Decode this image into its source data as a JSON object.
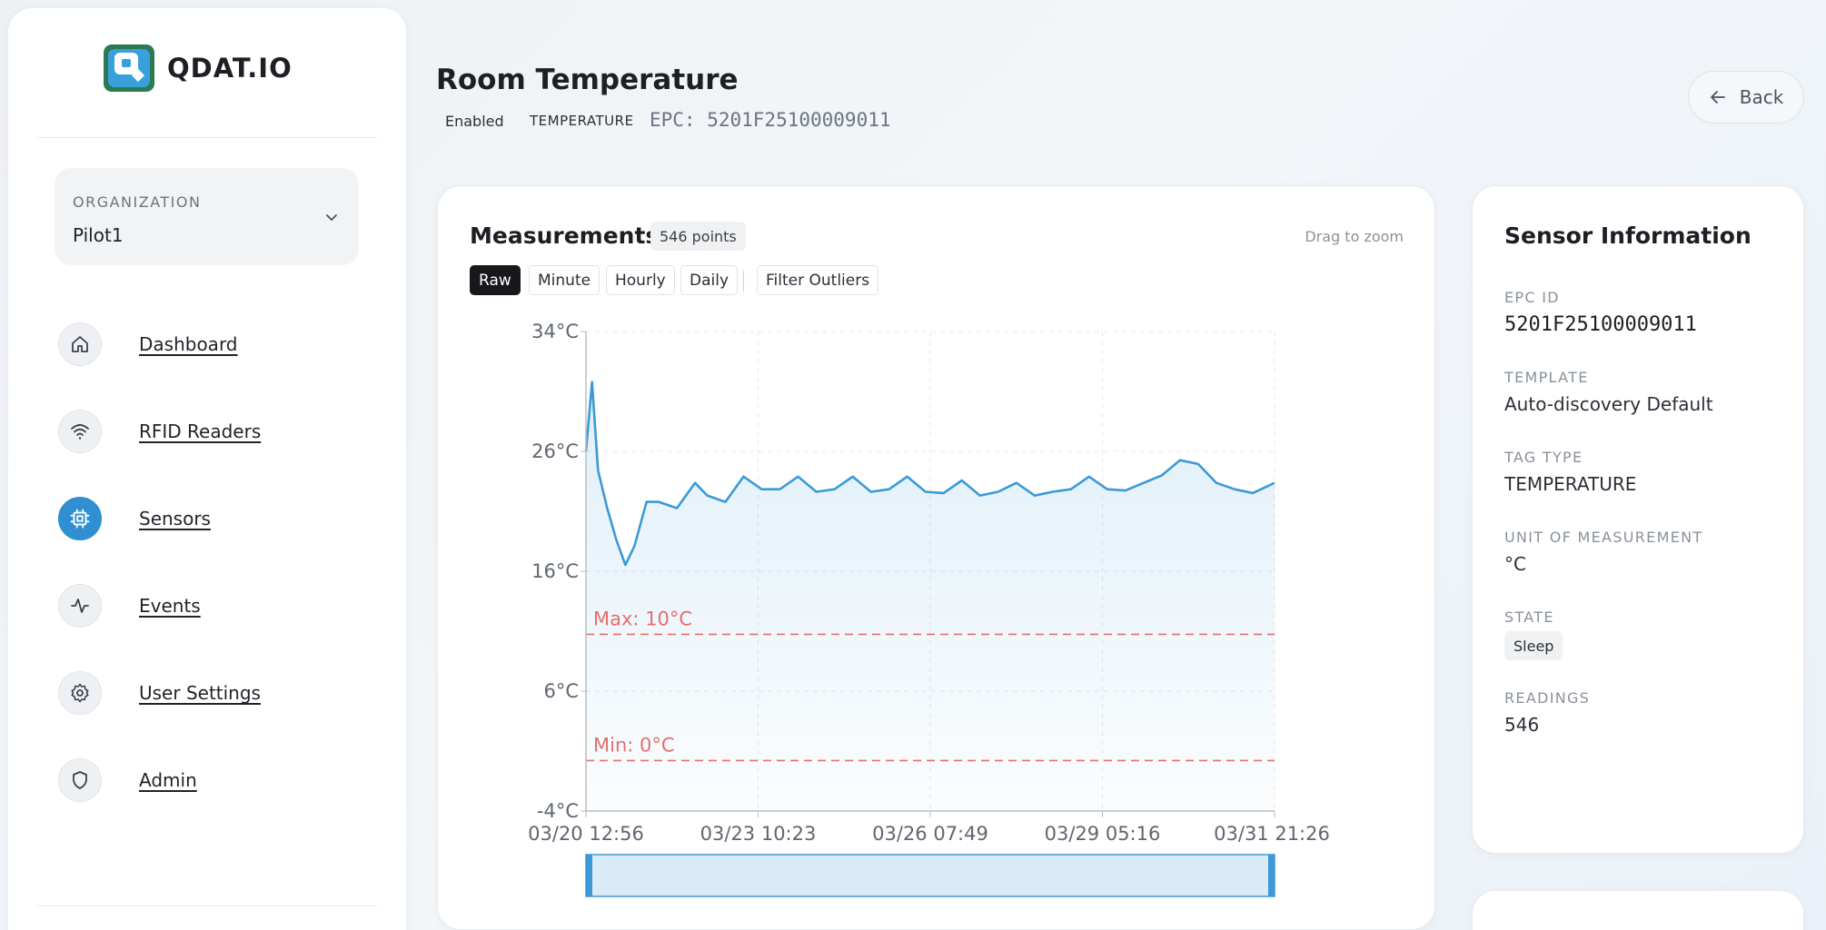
{
  "app": {
    "logo_text": "QDAT.IO",
    "brand_color": "#3aa0dc",
    "brand_dark": "#2b7a52"
  },
  "org": {
    "label": "ORGANIZATION",
    "value": "Pilot1",
    "icon": "chevron-down-icon"
  },
  "nav": [
    {
      "label": "Dashboard",
      "icon": "home-icon",
      "active": false
    },
    {
      "label": "RFID Readers",
      "icon": "wifi-icon",
      "active": false
    },
    {
      "label": "Sensors",
      "icon": "chip-icon",
      "active": true
    },
    {
      "label": "Events",
      "icon": "activity-icon",
      "active": false
    },
    {
      "label": "User Settings",
      "icon": "gear-icon",
      "active": false
    },
    {
      "label": "Admin",
      "icon": "shield-icon",
      "active": false
    }
  ],
  "header": {
    "title": "Room Temperature",
    "status": "Enabled",
    "type": "TEMPERATURE",
    "epc": "EPC: 5201F25100009011",
    "back_label": "Back"
  },
  "measurements": {
    "title": "Measurements",
    "points": "546 points",
    "hint": "Drag to zoom",
    "modes": [
      "Raw",
      "Minute",
      "Hourly",
      "Daily"
    ],
    "active_mode": "Raw",
    "filter_label": "Filter Outliers"
  },
  "chart_data": {
    "type": "area",
    "line_color": "#3b9ad6",
    "ref_color": "#e2706d",
    "ylim": [
      -4,
      34
    ],
    "y_ticks": [
      "34°C",
      "26°C",
      "16°C",
      "6°C",
      "-4°C"
    ],
    "x_ticks": [
      "03/20 12:56",
      "03/23 10:23",
      "03/26 07:49",
      "03/29 05:16",
      "03/31 21:26"
    ],
    "grid": true,
    "max_line": {
      "label": "Max: 10°C",
      "value": 10
    },
    "min_line": {
      "label": "Min: 0°C",
      "value": 0
    },
    "series": [
      {
        "x": [
          0,
          0.1,
          0.2,
          0.35,
          0.5,
          0.65,
          0.8,
          1.0,
          1.2,
          1.5,
          1.8,
          2.0,
          2.3,
          2.6,
          2.9,
          3.2,
          3.5,
          3.8,
          4.1,
          4.4,
          4.7,
          5.0,
          5.3,
          5.6,
          5.9,
          6.2,
          6.5,
          6.8,
          7.1,
          7.4,
          7.7,
          8.0,
          8.3,
          8.6,
          8.9,
          9.2,
          9.5,
          9.8,
          10.1,
          10.4,
          10.7,
          11.0,
          11.36
        ],
        "values": [
          24.5,
          30,
          23,
          20,
          17.5,
          15.5,
          17,
          20.5,
          20.5,
          20,
          22,
          21,
          20.5,
          22.5,
          21.5,
          21.5,
          22.5,
          21.3,
          21.5,
          22.5,
          21.3,
          21.5,
          22.5,
          21.3,
          21.2,
          22.2,
          21.0,
          21.3,
          22.0,
          21.0,
          21.3,
          21.5,
          22.5,
          21.5,
          21.4,
          22.0,
          22.6,
          23.8,
          23.5,
          22.0,
          21.5,
          21.2,
          22.0
        ]
      }
    ]
  },
  "sensor_info": {
    "title": "Sensor Information",
    "epc_label": "EPC ID",
    "epc_value": "5201F25100009011",
    "template_label": "TEMPLATE",
    "template_value": "Auto-discovery Default",
    "tag_type_label": "TAG TYPE",
    "tag_type_value": "TEMPERATURE",
    "unit_label": "UNIT OF MEASUREMENT",
    "unit_value": "°C",
    "state_label": "STATE",
    "state_value": "Sleep",
    "readings_label": "READINGS",
    "readings_value": "546"
  }
}
